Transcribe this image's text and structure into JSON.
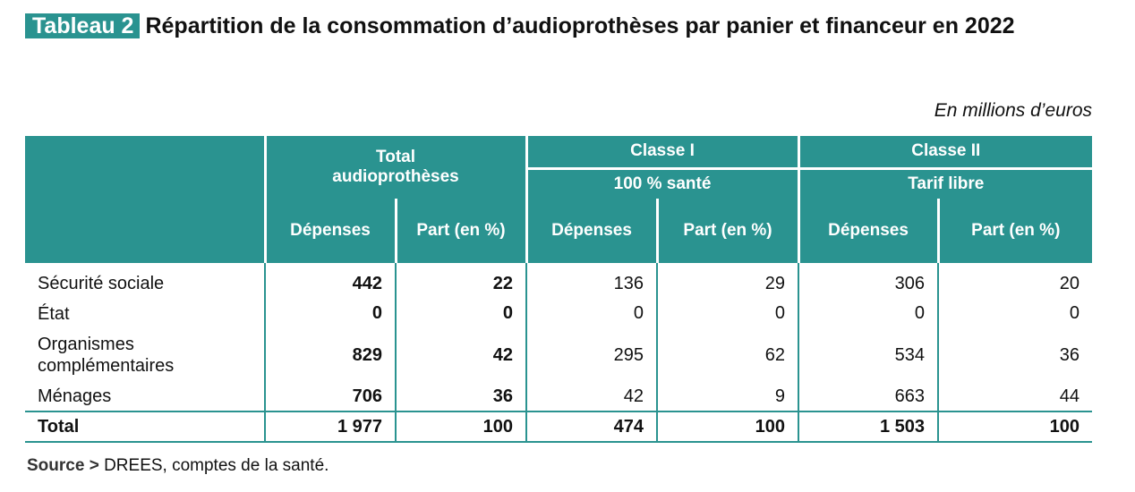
{
  "header": {
    "tag": "Tableau 2",
    "title": "Répartition de la consommation d’audioprothèses par panier et financeur en 2022",
    "unit": "En millions d’euros"
  },
  "table": {
    "groups": [
      {
        "line1": "Total",
        "line2": "audioprothèses"
      },
      {
        "line1": "Classe I",
        "line2": "100 % santé"
      },
      {
        "line1": "Classe II",
        "line2": "Tarif libre"
      }
    ],
    "columns": [
      "Dépenses",
      "Part (en %)",
      "Dépenses",
      "Part (en %)",
      "Dépenses",
      "Part (en %)"
    ],
    "rows": [
      {
        "label": "Sécurité sociale",
        "values": [
          "442",
          "22",
          "136",
          "29",
          "306",
          "20"
        ]
      },
      {
        "label": "État",
        "values": [
          "0",
          "0",
          "0",
          "0",
          "0",
          "0"
        ]
      },
      {
        "label": "Organismes complémentaires",
        "values": [
          "829",
          "42",
          "295",
          "62",
          "534",
          "36"
        ]
      },
      {
        "label": "Ménages",
        "values": [
          "706",
          "36",
          "42",
          "9",
          "663",
          "44"
        ]
      }
    ],
    "total": {
      "label": "Total",
      "values": [
        "1 977",
        "100",
        "474",
        "100",
        "1 503",
        "100"
      ]
    }
  },
  "source": {
    "label": "Source >",
    "text": " DREES, comptes de la santé."
  }
}
